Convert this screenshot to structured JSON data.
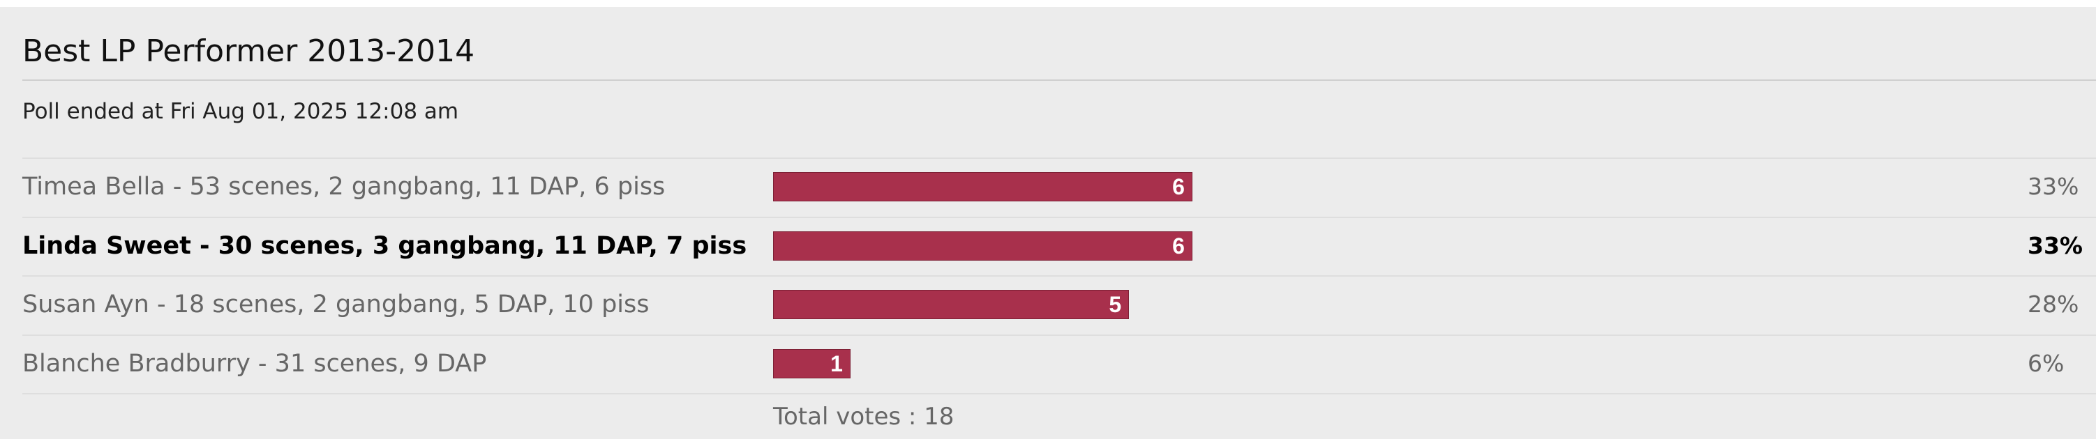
{
  "poll": {
    "title": "Best LP Performer 2013-2014",
    "ended": "Poll ended at Fri Aug 01, 2025 12:08 am",
    "voted_option": 1,
    "options": [
      {
        "label": "Timea Bella - 53 scenes, 2 gangbang, 11 DAP, 6 piss",
        "votes": 6,
        "percent": {
          "value": 33,
          "label": "33%"
        }
      },
      {
        "label": "Linda Sweet - 30 scenes, 3 gangbang, 11 DAP, 7 piss",
        "votes": 6,
        "percent": {
          "value": 33,
          "label": "33%"
        }
      },
      {
        "label": "Susan Ayn - 18 scenes, 2 gangbang, 5 DAP, 10 piss",
        "votes": 5,
        "percent": {
          "value": 28,
          "label": "28%"
        }
      },
      {
        "label": "Blanche Bradburry - 31 scenes, 9 DAP",
        "votes": 1,
        "percent": {
          "value": 6,
          "label": "6%"
        }
      }
    ],
    "total_votes": "Total votes : 18"
  }
}
